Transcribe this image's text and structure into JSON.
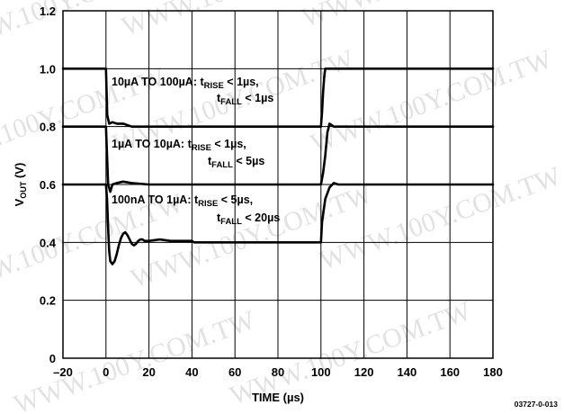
{
  "chart_data": {
    "type": "line",
    "title": "",
    "xlabel": "TIME (µs)",
    "ylabel": "VOUT (V)",
    "xlim": [
      -20,
      180
    ],
    "ylim": [
      0,
      1.2
    ],
    "grid": true,
    "xticks": [
      "–20",
      "0",
      "20",
      "40",
      "60",
      "80",
      "100",
      "120",
      "140",
      "160",
      "180"
    ],
    "yticks": [
      "0",
      "0.2",
      "0.4",
      "0.6",
      "0.8",
      "1.0",
      "1.2"
    ],
    "series": [
      {
        "x": [
          -20,
          -10,
          -5,
          -2,
          0,
          0.6,
          1.5,
          3,
          5,
          8,
          12,
          20,
          40,
          60,
          80,
          99,
          100,
          100.5,
          101,
          101.5,
          102,
          103,
          110,
          140,
          180
        ],
        "y": [
          1.0,
          1.0,
          1.0,
          1.0,
          1.0,
          0.84,
          0.81,
          0.815,
          0.81,
          0.81,
          0.8,
          0.8,
          0.8,
          0.8,
          0.8,
          0.8,
          0.8,
          0.85,
          0.92,
          0.97,
          1.0,
          1.0,
          1.0,
          1.0,
          1.0
        ]
      },
      {
        "x": [
          -20,
          0,
          0.5,
          1,
          2,
          3,
          5,
          8,
          12,
          20,
          40,
          60,
          80,
          99,
          100,
          101,
          102,
          103,
          104,
          106,
          110,
          140,
          180
        ],
        "y": [
          0.8,
          0.8,
          0.7,
          0.6,
          0.575,
          0.6,
          0.605,
          0.61,
          0.605,
          0.6,
          0.6,
          0.6,
          0.6,
          0.6,
          0.6,
          0.64,
          0.7,
          0.78,
          0.81,
          0.8,
          0.8,
          0.8,
          0.8
        ]
      },
      {
        "x": [
          -20,
          0,
          0.5,
          1,
          1.5,
          2,
          3,
          4,
          5,
          6,
          7,
          8,
          9,
          10,
          11,
          12,
          13,
          14,
          15,
          16,
          17,
          18,
          20,
          25,
          30,
          40,
          41,
          50,
          60,
          80,
          99.5,
          100,
          100.5,
          102,
          104,
          106,
          108,
          120,
          150,
          180
        ],
        "y": [
          0.6,
          0.6,
          0.55,
          0.45,
          0.37,
          0.335,
          0.325,
          0.335,
          0.36,
          0.39,
          0.415,
          0.43,
          0.435,
          0.425,
          0.41,
          0.395,
          0.39,
          0.395,
          0.405,
          0.41,
          0.41,
          0.405,
          0.405,
          0.41,
          0.405,
          0.405,
          0.4,
          0.4,
          0.4,
          0.4,
          0.4,
          0.4,
          0.47,
          0.55,
          0.59,
          0.605,
          0.6,
          0.6,
          0.6,
          0.6
        ]
      }
    ],
    "annotations": [
      {
        "lines": [
          [
            {
              "t": "10µA TO 100µA: t"
            },
            {
              "t": "RISE",
              "sub": true
            },
            {
              "t": " < 1µs,"
            }
          ],
          [
            {
              "t": "t"
            },
            {
              "t": "FALL",
              "sub": true
            },
            {
              "t": " < 1µs"
            }
          ]
        ]
      },
      {
        "lines": [
          [
            {
              "t": "1µA TO 10µA: t"
            },
            {
              "t": "RISE",
              "sub": true
            },
            {
              "t": " < 1µs,"
            }
          ],
          [
            {
              "t": "t"
            },
            {
              "t": "FALL",
              "sub": true
            },
            {
              "t": " < 5µs"
            }
          ]
        ]
      },
      {
        "lines": [
          [
            {
              "t": "100nA TO 1µA: t"
            },
            {
              "t": "RISE",
              "sub": true
            },
            {
              "t": " < 5µs,"
            }
          ],
          [
            {
              "t": "t"
            },
            {
              "t": "FALL",
              "sub": true
            },
            {
              "t": " < 20µs"
            }
          ]
        ]
      }
    ]
  },
  "figure_id": "03727-0-013",
  "watermark_text": "WWW.100Y.COM.TW"
}
